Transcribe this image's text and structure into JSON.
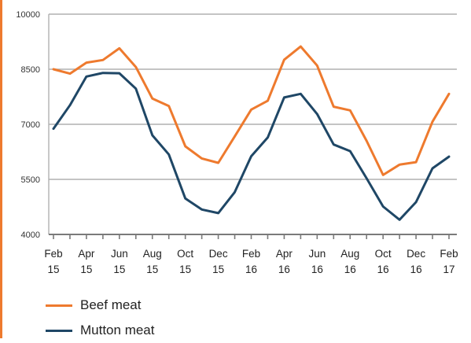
{
  "chart_data": {
    "type": "line",
    "title": "",
    "xlabel": "",
    "ylabel": "",
    "ylim": [
      4000,
      10000
    ],
    "yticks": [
      "4000",
      "5500",
      "7000",
      "8500",
      "10000"
    ],
    "ytick_values": [
      4000,
      5500,
      7000,
      8500,
      10000
    ],
    "x_tick_labels": [
      [
        "Feb",
        "15"
      ],
      [
        "Apr",
        "15"
      ],
      [
        "Jun",
        "15"
      ],
      [
        "Aug",
        "15"
      ],
      [
        "Oct",
        "15"
      ],
      [
        "Dec",
        "15"
      ],
      [
        "Feb",
        "16"
      ],
      [
        "Apr",
        "16"
      ],
      [
        "Jun",
        "16"
      ],
      [
        "Aug",
        "16"
      ],
      [
        "Oct",
        "16"
      ],
      [
        "Dec",
        "16"
      ],
      [
        "Feb",
        "17"
      ]
    ],
    "x": [
      "Feb 15",
      "Mar 15",
      "Apr 15",
      "May 15",
      "Jun 15",
      "Jul 15",
      "Aug 15",
      "Sep 15",
      "Oct 15",
      "Nov 15",
      "Dec 15",
      "Jan 16",
      "Feb 16",
      "Mar 16",
      "Apr 16",
      "May 16",
      "Jun 16",
      "Jul 16",
      "Aug 16",
      "Sep 16",
      "Oct 16",
      "Nov 16",
      "Dec 16",
      "Jan 17",
      "Feb 17"
    ],
    "series": [
      {
        "name": "Beef meat",
        "color": "#ee7a2e",
        "values": [
          8500,
          8380,
          8680,
          8750,
          9070,
          8560,
          7700,
          7500,
          6400,
          6070,
          5950,
          6670,
          7400,
          7640,
          8760,
          9120,
          8600,
          7480,
          7380,
          6550,
          5620,
          5900,
          5970,
          7070,
          7830
        ]
      },
      {
        "name": "Mutton meat",
        "color": "#1f4766",
        "values": [
          6880,
          7520,
          8300,
          8400,
          8390,
          7970,
          6700,
          6180,
          4980,
          4680,
          4580,
          5150,
          6130,
          6640,
          7730,
          7830,
          7280,
          6450,
          6270,
          5530,
          4760,
          4400,
          4880,
          5800,
          6120
        ]
      }
    ],
    "grid": true,
    "legend_position": "bottom-left"
  },
  "style": {
    "grid_color": "#b0b0b0",
    "axis_color": "#7a7a7a",
    "left_border_color": "#ee7a2e"
  }
}
